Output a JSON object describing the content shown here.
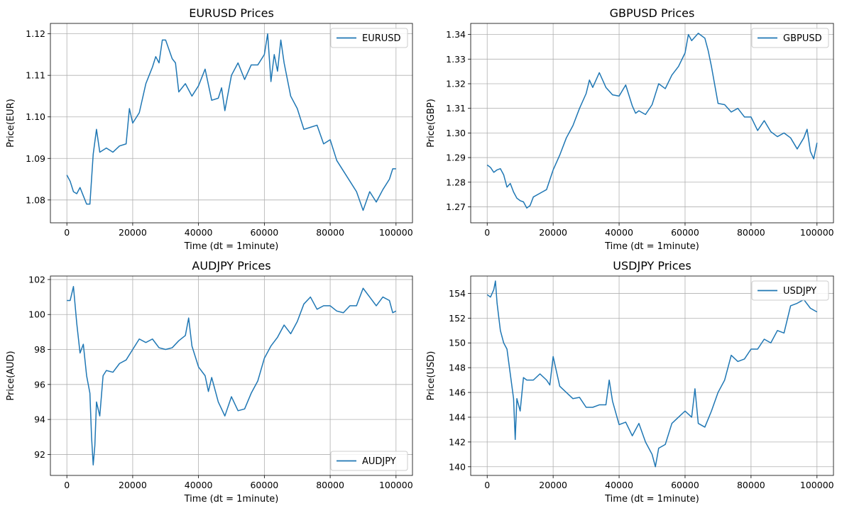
{
  "chart_data": [
    {
      "type": "line",
      "title": "EURUSD Prices",
      "xlabel": "Time (dt = 1minute)",
      "ylabel": "Price(EUR)",
      "xlim": [
        -5000,
        105000
      ],
      "ylim": [
        1.0745,
        1.1225
      ],
      "xticks": [
        0,
        20000,
        40000,
        60000,
        80000,
        100000
      ],
      "xtick_labels": [
        "0",
        "20000",
        "40000",
        "60000",
        "80000",
        "100000"
      ],
      "yticks": [
        1.08,
        1.09,
        1.1,
        1.11,
        1.12
      ],
      "ytick_labels": [
        "1.08",
        "1.09",
        "1.10",
        "1.11",
        "1.12"
      ],
      "grid": true,
      "legend_position": "upper-right",
      "series": [
        {
          "name": "EURUSD",
          "color": "#1f77b4",
          "x": [
            0,
            1000,
            2000,
            3000,
            4000,
            5000,
            6000,
            7000,
            8000,
            9000,
            10000,
            12000,
            14000,
            16000,
            18000,
            19000,
            20000,
            22000,
            24000,
            25000,
            26000,
            27000,
            28000,
            29000,
            30000,
            32000,
            33000,
            34000,
            36000,
            38000,
            40000,
            42000,
            44000,
            46000,
            47000,
            48000,
            50000,
            52000,
            54000,
            56000,
            58000,
            60000,
            61000,
            62000,
            63000,
            64000,
            65000,
            66000,
            68000,
            70000,
            72000,
            74000,
            76000,
            78000,
            80000,
            82000,
            84000,
            86000,
            88000,
            90000,
            92000,
            94000,
            96000,
            98000,
            99000,
            100000
          ],
          "values": [
            1.086,
            1.0845,
            1.082,
            1.0815,
            1.083,
            1.081,
            1.079,
            1.079,
            1.091,
            1.097,
            1.0915,
            1.0925,
            1.0915,
            1.093,
            1.0935,
            1.102,
            1.0985,
            1.101,
            1.108,
            1.11,
            1.112,
            1.1145,
            1.113,
            1.1185,
            1.1185,
            1.114,
            1.113,
            1.106,
            1.108,
            1.105,
            1.1075,
            1.1115,
            1.104,
            1.1045,
            1.107,
            1.1015,
            1.11,
            1.113,
            1.109,
            1.1125,
            1.1125,
            1.115,
            1.12,
            1.1085,
            1.115,
            1.111,
            1.1185,
            1.113,
            1.105,
            1.102,
            1.097,
            1.0975,
            1.098,
            1.0935,
            1.0945,
            1.0895,
            1.087,
            1.0845,
            1.082,
            1.0775,
            1.082,
            1.0795,
            1.0825,
            1.085,
            1.0875,
            1.0875
          ]
        }
      ]
    },
    {
      "type": "line",
      "title": "GBPUSD Prices",
      "xlabel": "Time (dt = 1minute)",
      "ylabel": "Price(GBP)",
      "xlim": [
        -5000,
        105000
      ],
      "ylim": [
        1.2635,
        1.3445
      ],
      "xticks": [
        0,
        20000,
        40000,
        60000,
        80000,
        100000
      ],
      "xtick_labels": [
        "0",
        "20000",
        "40000",
        "60000",
        "80000",
        "100000"
      ],
      "yticks": [
        1.27,
        1.28,
        1.29,
        1.3,
        1.31,
        1.32,
        1.33,
        1.34
      ],
      "ytick_labels": [
        "1.27",
        "1.28",
        "1.29",
        "1.30",
        "1.31",
        "1.32",
        "1.33",
        "1.34"
      ],
      "grid": true,
      "legend_position": "upper-right",
      "series": [
        {
          "name": "GBPUSD",
          "color": "#1f77b4",
          "x": [
            0,
            1000,
            2000,
            3000,
            4000,
            5000,
            6000,
            7000,
            8000,
            9000,
            10000,
            11000,
            12000,
            13000,
            14000,
            16000,
            18000,
            20000,
            22000,
            24000,
            26000,
            28000,
            30000,
            31000,
            32000,
            34000,
            36000,
            38000,
            40000,
            42000,
            44000,
            45000,
            46000,
            48000,
            50000,
            52000,
            54000,
            56000,
            58000,
            60000,
            61000,
            62000,
            64000,
            66000,
            67000,
            68000,
            70000,
            72000,
            74000,
            76000,
            78000,
            80000,
            82000,
            84000,
            86000,
            88000,
            90000,
            92000,
            94000,
            96000,
            97000,
            98000,
            99000,
            100000
          ],
          "values": [
            1.287,
            1.286,
            1.284,
            1.285,
            1.2855,
            1.283,
            1.278,
            1.2795,
            1.276,
            1.2735,
            1.2725,
            1.272,
            1.2695,
            1.2705,
            1.274,
            1.2755,
            1.277,
            1.285,
            1.291,
            1.298,
            1.303,
            1.31,
            1.316,
            1.3215,
            1.3185,
            1.3245,
            1.3185,
            1.3155,
            1.315,
            1.3195,
            1.311,
            1.308,
            1.309,
            1.3075,
            1.3115,
            1.32,
            1.318,
            1.3235,
            1.327,
            1.3325,
            1.34,
            1.3375,
            1.3405,
            1.3385,
            1.3335,
            1.327,
            1.312,
            1.3115,
            1.3085,
            1.31,
            1.3065,
            1.3065,
            1.301,
            1.305,
            1.3005,
            1.2985,
            1.3,
            1.298,
            1.2935,
            1.298,
            1.3015,
            1.2925,
            1.2895,
            1.296
          ]
        }
      ]
    },
    {
      "type": "line",
      "title": "AUDJPY Prices",
      "xlabel": "Time (dt = 1minute)",
      "ylabel": "Price(AUD)",
      "xlim": [
        -5000,
        105000
      ],
      "ylim": [
        90.8,
        102.2
      ],
      "xticks": [
        0,
        20000,
        40000,
        60000,
        80000,
        100000
      ],
      "xtick_labels": [
        "0",
        "20000",
        "40000",
        "60000",
        "80000",
        "100000"
      ],
      "yticks": [
        92,
        94,
        96,
        98,
        100,
        102
      ],
      "ytick_labels": [
        "92",
        "94",
        "96",
        "98",
        "100",
        "102"
      ],
      "grid": true,
      "legend_position": "lower-right",
      "series": [
        {
          "name": "AUDJPY",
          "color": "#1f77b4",
          "x": [
            0,
            1000,
            2000,
            3000,
            4000,
            5000,
            6000,
            7000,
            7500,
            8000,
            8500,
            9000,
            10000,
            11000,
            12000,
            14000,
            16000,
            18000,
            20000,
            22000,
            24000,
            26000,
            28000,
            30000,
            32000,
            34000,
            36000,
            37000,
            38000,
            40000,
            42000,
            43000,
            44000,
            46000,
            48000,
            50000,
            52000,
            54000,
            56000,
            58000,
            60000,
            62000,
            64000,
            66000,
            68000,
            70000,
            72000,
            74000,
            76000,
            78000,
            80000,
            82000,
            84000,
            86000,
            88000,
            90000,
            92000,
            94000,
            96000,
            98000,
            99000,
            100000
          ],
          "values": [
            100.8,
            100.8,
            101.6,
            99.5,
            97.8,
            98.3,
            96.5,
            95.5,
            93.0,
            91.4,
            92.5,
            95.0,
            94.2,
            96.5,
            96.8,
            96.7,
            97.2,
            97.4,
            98.0,
            98.6,
            98.4,
            98.6,
            98.1,
            98.0,
            98.1,
            98.5,
            98.8,
            99.8,
            98.2,
            97.0,
            96.5,
            95.6,
            96.4,
            95.0,
            94.2,
            95.3,
            94.5,
            94.6,
            95.5,
            96.2,
            97.5,
            98.2,
            98.7,
            99.4,
            98.9,
            99.6,
            100.6,
            101.0,
            100.3,
            100.5,
            100.5,
            100.2,
            100.1,
            100.5,
            100.5,
            101.5,
            101.0,
            100.5,
            101.0,
            100.8,
            100.1,
            100.2
          ]
        }
      ]
    },
    {
      "type": "line",
      "title": "USDJPY Prices",
      "xlabel": "Time (dt = 1minute)",
      "ylabel": "Price(USD)",
      "xlim": [
        -5000,
        105000
      ],
      "ylim": [
        139.3,
        155.4
      ],
      "xticks": [
        0,
        20000,
        40000,
        60000,
        80000,
        100000
      ],
      "xtick_labels": [
        "0",
        "20000",
        "40000",
        "60000",
        "80000",
        "100000"
      ],
      "yticks": [
        140,
        142,
        144,
        146,
        148,
        150,
        152,
        154
      ],
      "ytick_labels": [
        "140",
        "142",
        "144",
        "146",
        "148",
        "150",
        "152",
        "154"
      ],
      "grid": true,
      "legend_position": "upper-right",
      "series": [
        {
          "name": "USDJPY",
          "color": "#1f77b4",
          "x": [
            0,
            1000,
            2000,
            2500,
            3000,
            4000,
            5000,
            6000,
            7000,
            8000,
            8500,
            9000,
            10000,
            11000,
            12000,
            14000,
            16000,
            18000,
            19000,
            20000,
            22000,
            24000,
            26000,
            28000,
            30000,
            32000,
            34000,
            36000,
            37000,
            38000,
            40000,
            42000,
            44000,
            46000,
            48000,
            50000,
            51000,
            52000,
            54000,
            56000,
            58000,
            60000,
            62000,
            63000,
            64000,
            66000,
            68000,
            70000,
            72000,
            74000,
            76000,
            78000,
            80000,
            82000,
            84000,
            86000,
            88000,
            90000,
            92000,
            94000,
            96000,
            98000,
            100000
          ],
          "values": [
            153.9,
            153.7,
            154.3,
            155.0,
            153.2,
            151.0,
            150.0,
            149.5,
            147.5,
            145.5,
            142.2,
            145.5,
            144.5,
            147.2,
            147.0,
            147.0,
            147.5,
            147.0,
            146.6,
            148.9,
            146.5,
            146.0,
            145.5,
            145.6,
            144.8,
            144.8,
            145.0,
            145.0,
            147.0,
            145.3,
            143.4,
            143.6,
            142.5,
            143.5,
            142.0,
            141.0,
            140.0,
            141.5,
            141.8,
            143.5,
            144.0,
            144.5,
            144.0,
            146.3,
            143.5,
            143.2,
            144.5,
            146.0,
            147.0,
            149.0,
            148.5,
            148.7,
            149.5,
            149.5,
            150.3,
            150.0,
            151.0,
            150.8,
            153.0,
            153.2,
            153.5,
            152.8,
            152.5
          ]
        }
      ]
    }
  ]
}
